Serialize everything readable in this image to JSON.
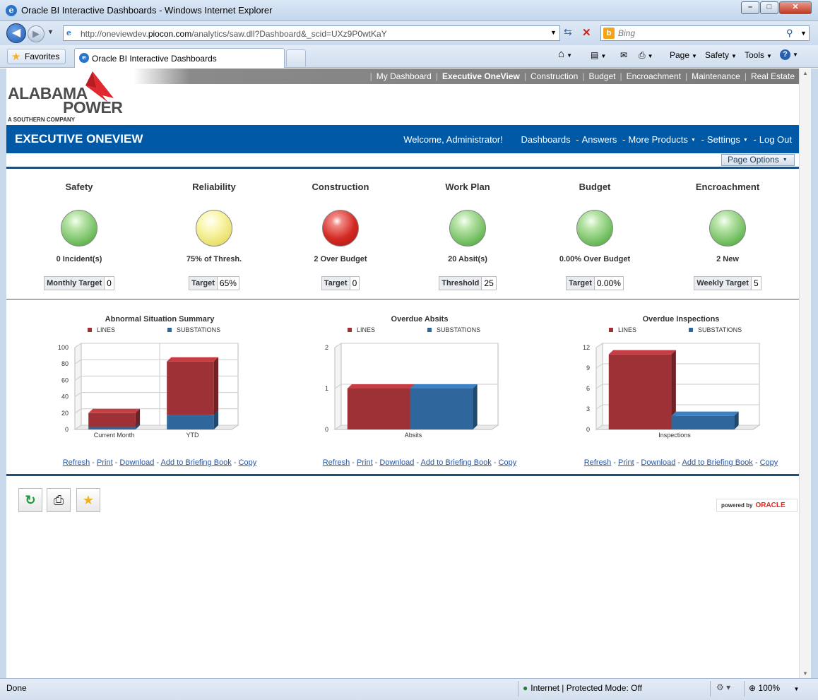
{
  "window": {
    "title": "Oracle BI Interactive Dashboards - Windows Internet Explorer",
    "min": "–",
    "max": "□",
    "close": "✕"
  },
  "browser": {
    "url_prefix": "http://oneviewdev.",
    "url_domain": "piocon.com",
    "url_suffix": "/analytics/saw.dll?Dashboard&_scid=UXz9P0wtKaY",
    "search_placeholder": "Bing",
    "favorites": "Favorites",
    "tab_title": "Oracle BI Interactive Dashboards",
    "commands": {
      "page": "Page",
      "safety": "Safety",
      "tools": "Tools"
    }
  },
  "topnav": {
    "items": [
      "My Dashboard",
      "Executive OneView",
      "Construction",
      "Budget",
      "Encroachment",
      "Maintenance",
      "Real Estate"
    ],
    "active": "Executive OneView"
  },
  "logo": {
    "line1": "ALABAMA",
    "line2": "POWER",
    "line3": "A SOUTHERN COMPANY"
  },
  "header": {
    "title": "EXECUTIVE ONEVIEW",
    "welcome": "Welcome, Administrator!",
    "dashboards": "Dashboards",
    "answers": "Answers",
    "more_products": "More Products",
    "settings": "Settings",
    "logout": "Log Out",
    "page_options": "Page Options"
  },
  "kpis": [
    {
      "title": "Safety",
      "status": "green",
      "value": "0 Incident(s)",
      "target_label": "Monthly Target",
      "target_value": "0"
    },
    {
      "title": "Reliability",
      "status": "yellow",
      "value": "75% of Thresh.",
      "target_label": "Target",
      "target_value": "65%"
    },
    {
      "title": "Construction",
      "status": "red",
      "value": "2 Over Budget",
      "target_label": "Target",
      "target_value": "0"
    },
    {
      "title": "Work Plan",
      "status": "green",
      "value": "20 Absit(s)",
      "target_label": "Threshold",
      "target_value": "25"
    },
    {
      "title": "Budget",
      "status": "green",
      "value": "0.00% Over Budget",
      "target_label": "Target",
      "target_value": "0.00%"
    },
    {
      "title": "Encroachment",
      "status": "green",
      "value": "2 New",
      "target_label": "Weekly Target",
      "target_value": "5"
    }
  ],
  "colors": {
    "lines": "#9e3136",
    "substations": "#2f679c",
    "header_blue": "#0059a7"
  },
  "chart_data": [
    {
      "type": "bar",
      "stacked": true,
      "title": "Abnormal Situation Summary",
      "categories": [
        "Current Month",
        "YTD"
      ],
      "series": [
        {
          "name": "LINES",
          "values": [
            17,
            65
          ]
        },
        {
          "name": "SUBSTATIONS",
          "values": [
            3,
            18
          ]
        }
      ],
      "ylim": [
        0,
        100
      ],
      "yticks": [
        "0",
        "20",
        "40",
        "60",
        "80",
        "100"
      ],
      "legend": "top"
    },
    {
      "type": "bar",
      "stacked": false,
      "title": "Overdue Absits",
      "categories": [
        "Absits"
      ],
      "series": [
        {
          "name": "LINES",
          "values": [
            1
          ]
        },
        {
          "name": "SUBSTATIONS",
          "values": [
            1
          ]
        }
      ],
      "ylim": [
        0,
        2
      ],
      "yticks": [
        "0",
        "1",
        "2"
      ],
      "legend": "top"
    },
    {
      "type": "bar",
      "stacked": false,
      "title": "Overdue Inspections",
      "categories": [
        "Inspections"
      ],
      "series": [
        {
          "name": "LINES",
          "values": [
            11
          ]
        },
        {
          "name": "SUBSTATIONS",
          "values": [
            2
          ]
        }
      ],
      "ylim": [
        0,
        12
      ],
      "yticks": [
        "0",
        "3",
        "6",
        "9",
        "12"
      ],
      "legend": "top"
    }
  ],
  "chart_links": {
    "refresh": "Refresh",
    "print": "Print",
    "download": "Download",
    "briefing": "Add to Briefing Book",
    "copy": "Copy"
  },
  "footer": {
    "powered_by": "powered by",
    "oracle": "ORACLE"
  },
  "status": {
    "text": "Done",
    "zone": "Internet | Protected Mode: Off",
    "zoom": "100%"
  }
}
